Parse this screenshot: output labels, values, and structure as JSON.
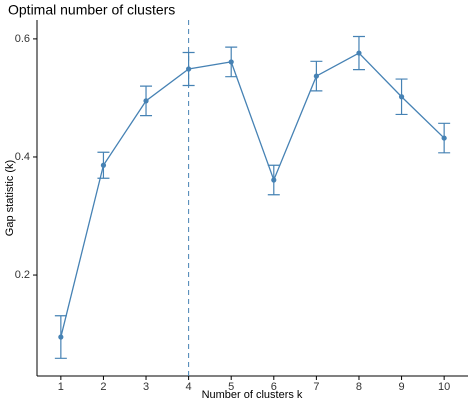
{
  "chart_data": {
    "type": "line",
    "title": "Optimal number of clusters",
    "x_label": "Number of clusters k",
    "y_label": "Gap statistic (k)",
    "x": [
      1,
      2,
      3,
      4,
      5,
      6,
      7,
      8,
      9,
      10
    ],
    "series": [
      {
        "name": "gap",
        "color": "#4682b4",
        "values": [
          0.095,
          0.386,
          0.495,
          0.549,
          0.561,
          0.361,
          0.537,
          0.576,
          0.502,
          0.432
        ],
        "errors": [
          0.036,
          0.022,
          0.025,
          0.028,
          0.025,
          0.025,
          0.025,
          0.028,
          0.03,
          0.025
        ]
      }
    ],
    "vline": 4,
    "xlim": [
      0.44,
      10.56
    ],
    "xticks": [
      1,
      2,
      3,
      4,
      5,
      6,
      7,
      8,
      9,
      10
    ],
    "ylim": [
      0.029,
      0.632
    ],
    "yticks": [
      0.2,
      0.4,
      0.6
    ]
  }
}
